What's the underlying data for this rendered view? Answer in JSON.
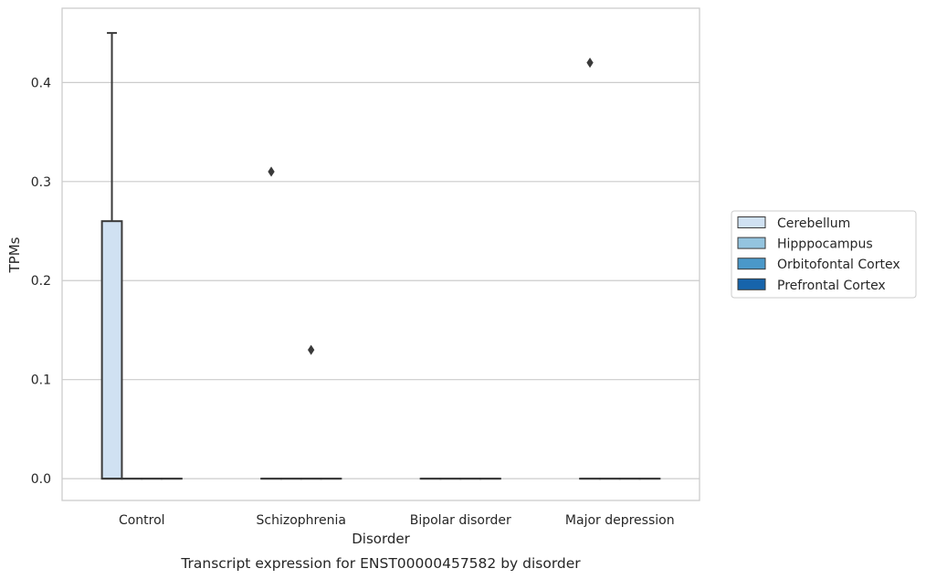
{
  "chart_data": {
    "type": "box",
    "xlabel": "Disorder",
    "ylabel": "TPMs",
    "caption": "Transcript expression for ENST00000457582 by disorder",
    "categories": [
      "Control",
      "Schizophrenia",
      "Bipolar disorder",
      "Major depression"
    ],
    "ylim": [
      -0.022,
      0.475
    ],
    "yticks": [
      0.0,
      0.1,
      0.2,
      0.3,
      0.4
    ],
    "ytick_labels": [
      "0.0",
      "0.1",
      "0.2",
      "0.3",
      "0.4"
    ],
    "grid": "horizontal",
    "legend_position": "right",
    "series": [
      {
        "name": "Cerebellum",
        "color": "#d0e1f2",
        "boxes": [
          {
            "category": "Control",
            "q1": 0.0,
            "median": 0.0,
            "q3": 0.26,
            "whisker_low": 0.0,
            "whisker_high": 0.45,
            "outliers": []
          },
          {
            "category": "Schizophrenia",
            "q1": 0.0,
            "median": 0.0,
            "q3": 0.0,
            "whisker_low": 0.0,
            "whisker_high": 0.0,
            "outliers": [
              0.31
            ]
          },
          {
            "category": "Bipolar disorder",
            "q1": 0.0,
            "median": 0.0,
            "q3": 0.0,
            "whisker_low": 0.0,
            "whisker_high": 0.0,
            "outliers": []
          },
          {
            "category": "Major depression",
            "q1": 0.0,
            "median": 0.0,
            "q3": 0.0,
            "whisker_low": 0.0,
            "whisker_high": 0.0,
            "outliers": [
              0.42
            ]
          }
        ]
      },
      {
        "name": "Hipppocampus",
        "color": "#94c4df",
        "boxes": [
          {
            "category": "Control",
            "q1": 0.0,
            "median": 0.0,
            "q3": 0.0,
            "whisker_low": 0.0,
            "whisker_high": 0.0,
            "outliers": []
          },
          {
            "category": "Schizophrenia",
            "q1": 0.0,
            "median": 0.0,
            "q3": 0.0,
            "whisker_low": 0.0,
            "whisker_high": 0.0,
            "outliers": []
          },
          {
            "category": "Bipolar disorder",
            "q1": 0.0,
            "median": 0.0,
            "q3": 0.0,
            "whisker_low": 0.0,
            "whisker_high": 0.0,
            "outliers": []
          },
          {
            "category": "Major depression",
            "q1": 0.0,
            "median": 0.0,
            "q3": 0.0,
            "whisker_low": 0.0,
            "whisker_high": 0.0,
            "outliers": []
          }
        ]
      },
      {
        "name": "Orbitofontal Cortex",
        "color": "#4a98c9",
        "boxes": [
          {
            "category": "Control",
            "q1": 0.0,
            "median": 0.0,
            "q3": 0.0,
            "whisker_low": 0.0,
            "whisker_high": 0.0,
            "outliers": []
          },
          {
            "category": "Schizophrenia",
            "q1": 0.0,
            "median": 0.0,
            "q3": 0.0,
            "whisker_low": 0.0,
            "whisker_high": 0.0,
            "outliers": [
              0.13
            ]
          },
          {
            "category": "Bipolar disorder",
            "q1": 0.0,
            "median": 0.0,
            "q3": 0.0,
            "whisker_low": 0.0,
            "whisker_high": 0.0,
            "outliers": []
          },
          {
            "category": "Major depression",
            "q1": 0.0,
            "median": 0.0,
            "q3": 0.0,
            "whisker_low": 0.0,
            "whisker_high": 0.0,
            "outliers": []
          }
        ]
      },
      {
        "name": "Prefrontal Cortex",
        "color": "#1764ab",
        "boxes": [
          {
            "category": "Control",
            "q1": 0.0,
            "median": 0.0,
            "q3": 0.0,
            "whisker_low": 0.0,
            "whisker_high": 0.0,
            "outliers": []
          },
          {
            "category": "Schizophrenia",
            "q1": 0.0,
            "median": 0.0,
            "q3": 0.0,
            "whisker_low": 0.0,
            "whisker_high": 0.0,
            "outliers": []
          },
          {
            "category": "Bipolar disorder",
            "q1": 0.0,
            "median": 0.0,
            "q3": 0.0,
            "whisker_low": 0.0,
            "whisker_high": 0.0,
            "outliers": []
          },
          {
            "category": "Major depression",
            "q1": 0.0,
            "median": 0.0,
            "q3": 0.0,
            "whisker_low": 0.0,
            "whisker_high": 0.0,
            "outliers": []
          }
        ]
      }
    ],
    "colors": {
      "grid": "#cccccc",
      "frame": "#cccccc",
      "box_edge": "#3a3a3a",
      "text": "#262626"
    }
  }
}
